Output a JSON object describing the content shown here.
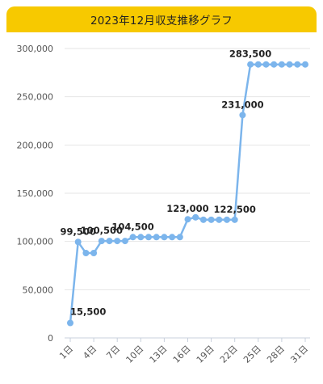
{
  "chart_data": {
    "type": "line",
    "title": "2023年12月収支推移グラフ",
    "xlabel": "",
    "ylabel": "",
    "ylim": [
      0,
      300000
    ],
    "grid": "horizontal",
    "y_ticks": [
      "0",
      "50,000",
      "100,000",
      "150,000",
      "200,000",
      "250,000",
      "300,000"
    ],
    "y_tick_values": [
      0,
      50000,
      100000,
      150000,
      200000,
      250000,
      300000
    ],
    "x_tick_labels": [
      "1日",
      "4日",
      "7日",
      "10日",
      "13日",
      "16日",
      "19日",
      "22日",
      "25日",
      "28日",
      "31日"
    ],
    "x_tick_days": [
      1,
      4,
      7,
      10,
      13,
      16,
      19,
      22,
      25,
      28,
      31
    ],
    "x": [
      1,
      2,
      3,
      4,
      5,
      6,
      7,
      8,
      9,
      10,
      11,
      12,
      13,
      14,
      15,
      16,
      17,
      18,
      19,
      20,
      21,
      22,
      23,
      24,
      25,
      26,
      27,
      28,
      29,
      30,
      31
    ],
    "series": [
      {
        "values": [
          15500,
          99500,
          88000,
          88000,
          100500,
          100500,
          100500,
          100500,
          104500,
          104500,
          104500,
          104500,
          104500,
          104500,
          104500,
          123000,
          125000,
          122500,
          122500,
          122500,
          122500,
          122500,
          231000,
          283500,
          283500,
          283500,
          283500,
          283500,
          283500,
          283500,
          283500
        ],
        "color": "#7cb5ec"
      }
    ],
    "data_labels": [
      {
        "day": 1,
        "text": "15,500"
      },
      {
        "day": 2,
        "text": "99,500"
      },
      {
        "day": 5,
        "text": "100,500"
      },
      {
        "day": 9,
        "text": "104,500"
      },
      {
        "day": 16,
        "text": "123,000"
      },
      {
        "day": 22,
        "text": "122,500"
      },
      {
        "day": 23,
        "text": "231,000"
      },
      {
        "day": 24,
        "text": "283,500"
      }
    ]
  }
}
